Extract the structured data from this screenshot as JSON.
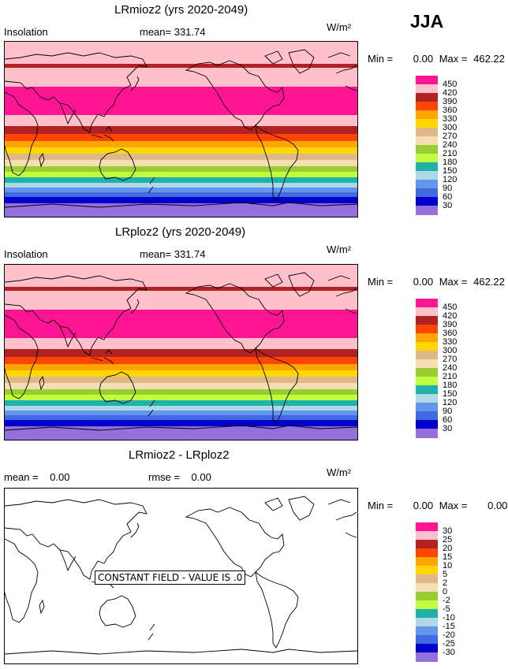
{
  "season": "JJA",
  "units": "W/m²",
  "palette": [
    "#9370db",
    "#0000cd",
    "#4169e1",
    "#6495ed",
    "#add8e6",
    "#20b2aa",
    "#c0ff3e",
    "#9acd32",
    "#f5deb3",
    "#deb887",
    "#ffd700",
    "#ffa500",
    "#ff4500",
    "#b22222",
    "#ffc0cb",
    "#ff1493"
  ],
  "panels": [
    {
      "title": "LRmioz2 (yrs 2020-2049)",
      "field": "Insolation",
      "mean": "mean=  331.74",
      "min_label": "Min =",
      "min": "0.00",
      "max_label": "Max =",
      "max": "462.22",
      "levels": [
        "450",
        "420",
        "390",
        "360",
        "330",
        "300",
        "270",
        "240",
        "210",
        "180",
        "150",
        "120",
        "90",
        "60",
        "30"
      ]
    },
    {
      "title": "LRploz2 (yrs 2020-2049)",
      "field": "Insolation",
      "mean": "mean=  331.74",
      "min_label": "Min =",
      "min": "0.00",
      "max_label": "Max =",
      "max": "462.22",
      "levels": [
        "450",
        "420",
        "390",
        "360",
        "330",
        "300",
        "270",
        "240",
        "210",
        "180",
        "150",
        "120",
        "90",
        "60",
        "30"
      ]
    },
    {
      "title": "LRmioz2 - LRploz2",
      "mean": "mean =    0.00",
      "rmse": "rmse =    0.00",
      "min_label": "Min =",
      "min": "0.00",
      "max_label": "Max =",
      "max": "0.00",
      "levels": [
        "30",
        "25",
        "20",
        "15",
        "10",
        "5",
        "2",
        "0",
        "-2",
        "-5",
        "-10",
        "-15",
        "-20",
        "-25",
        "-30"
      ],
      "constant_label": "CONSTANT FIELD - VALUE IS .0"
    }
  ]
}
